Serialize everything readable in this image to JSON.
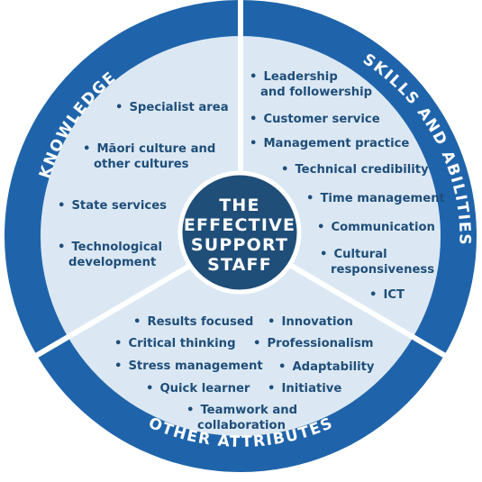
{
  "center": {
    "lines": [
      "THE",
      "EFFECTIVE",
      "SUPPORT",
      "STAFF"
    ]
  },
  "ring_labels": {
    "knowledge": "KNOWLEDGE",
    "skills": "SKILLS AND ABILITIES",
    "other": "OTHER ATTRIBUTES"
  },
  "knowledge": {
    "items": [
      [
        "Specialist area"
      ],
      [
        "Māori culture and",
        "other cultures"
      ],
      [
        "State services"
      ],
      [
        "Technological",
        "development"
      ]
    ]
  },
  "skills": {
    "items": [
      [
        "Leadership",
        "and followership"
      ],
      [
        "Customer service"
      ],
      [
        "Management practice"
      ],
      [
        "Technical credibility"
      ],
      [
        "Time management"
      ],
      [
        "Communication"
      ],
      [
        "Cultural",
        "responsiveness"
      ],
      [
        "ICT"
      ]
    ]
  },
  "other": {
    "items": [
      [
        "Results focused"
      ],
      [
        "Innovation"
      ],
      [
        "Critical thinking"
      ],
      [
        "Professionalism"
      ],
      [
        "Stress management"
      ],
      [
        "Adaptability"
      ],
      [
        "Quick learner"
      ],
      [
        "Initiative"
      ],
      [
        "Teamwork and",
        "collaboration"
      ]
    ]
  },
  "colors": {
    "ring": "#1f64ab",
    "inner_fill": "#dbe8f4",
    "center": "#1f4e79",
    "text": "#1f4e79",
    "divider": "#ffffff"
  }
}
